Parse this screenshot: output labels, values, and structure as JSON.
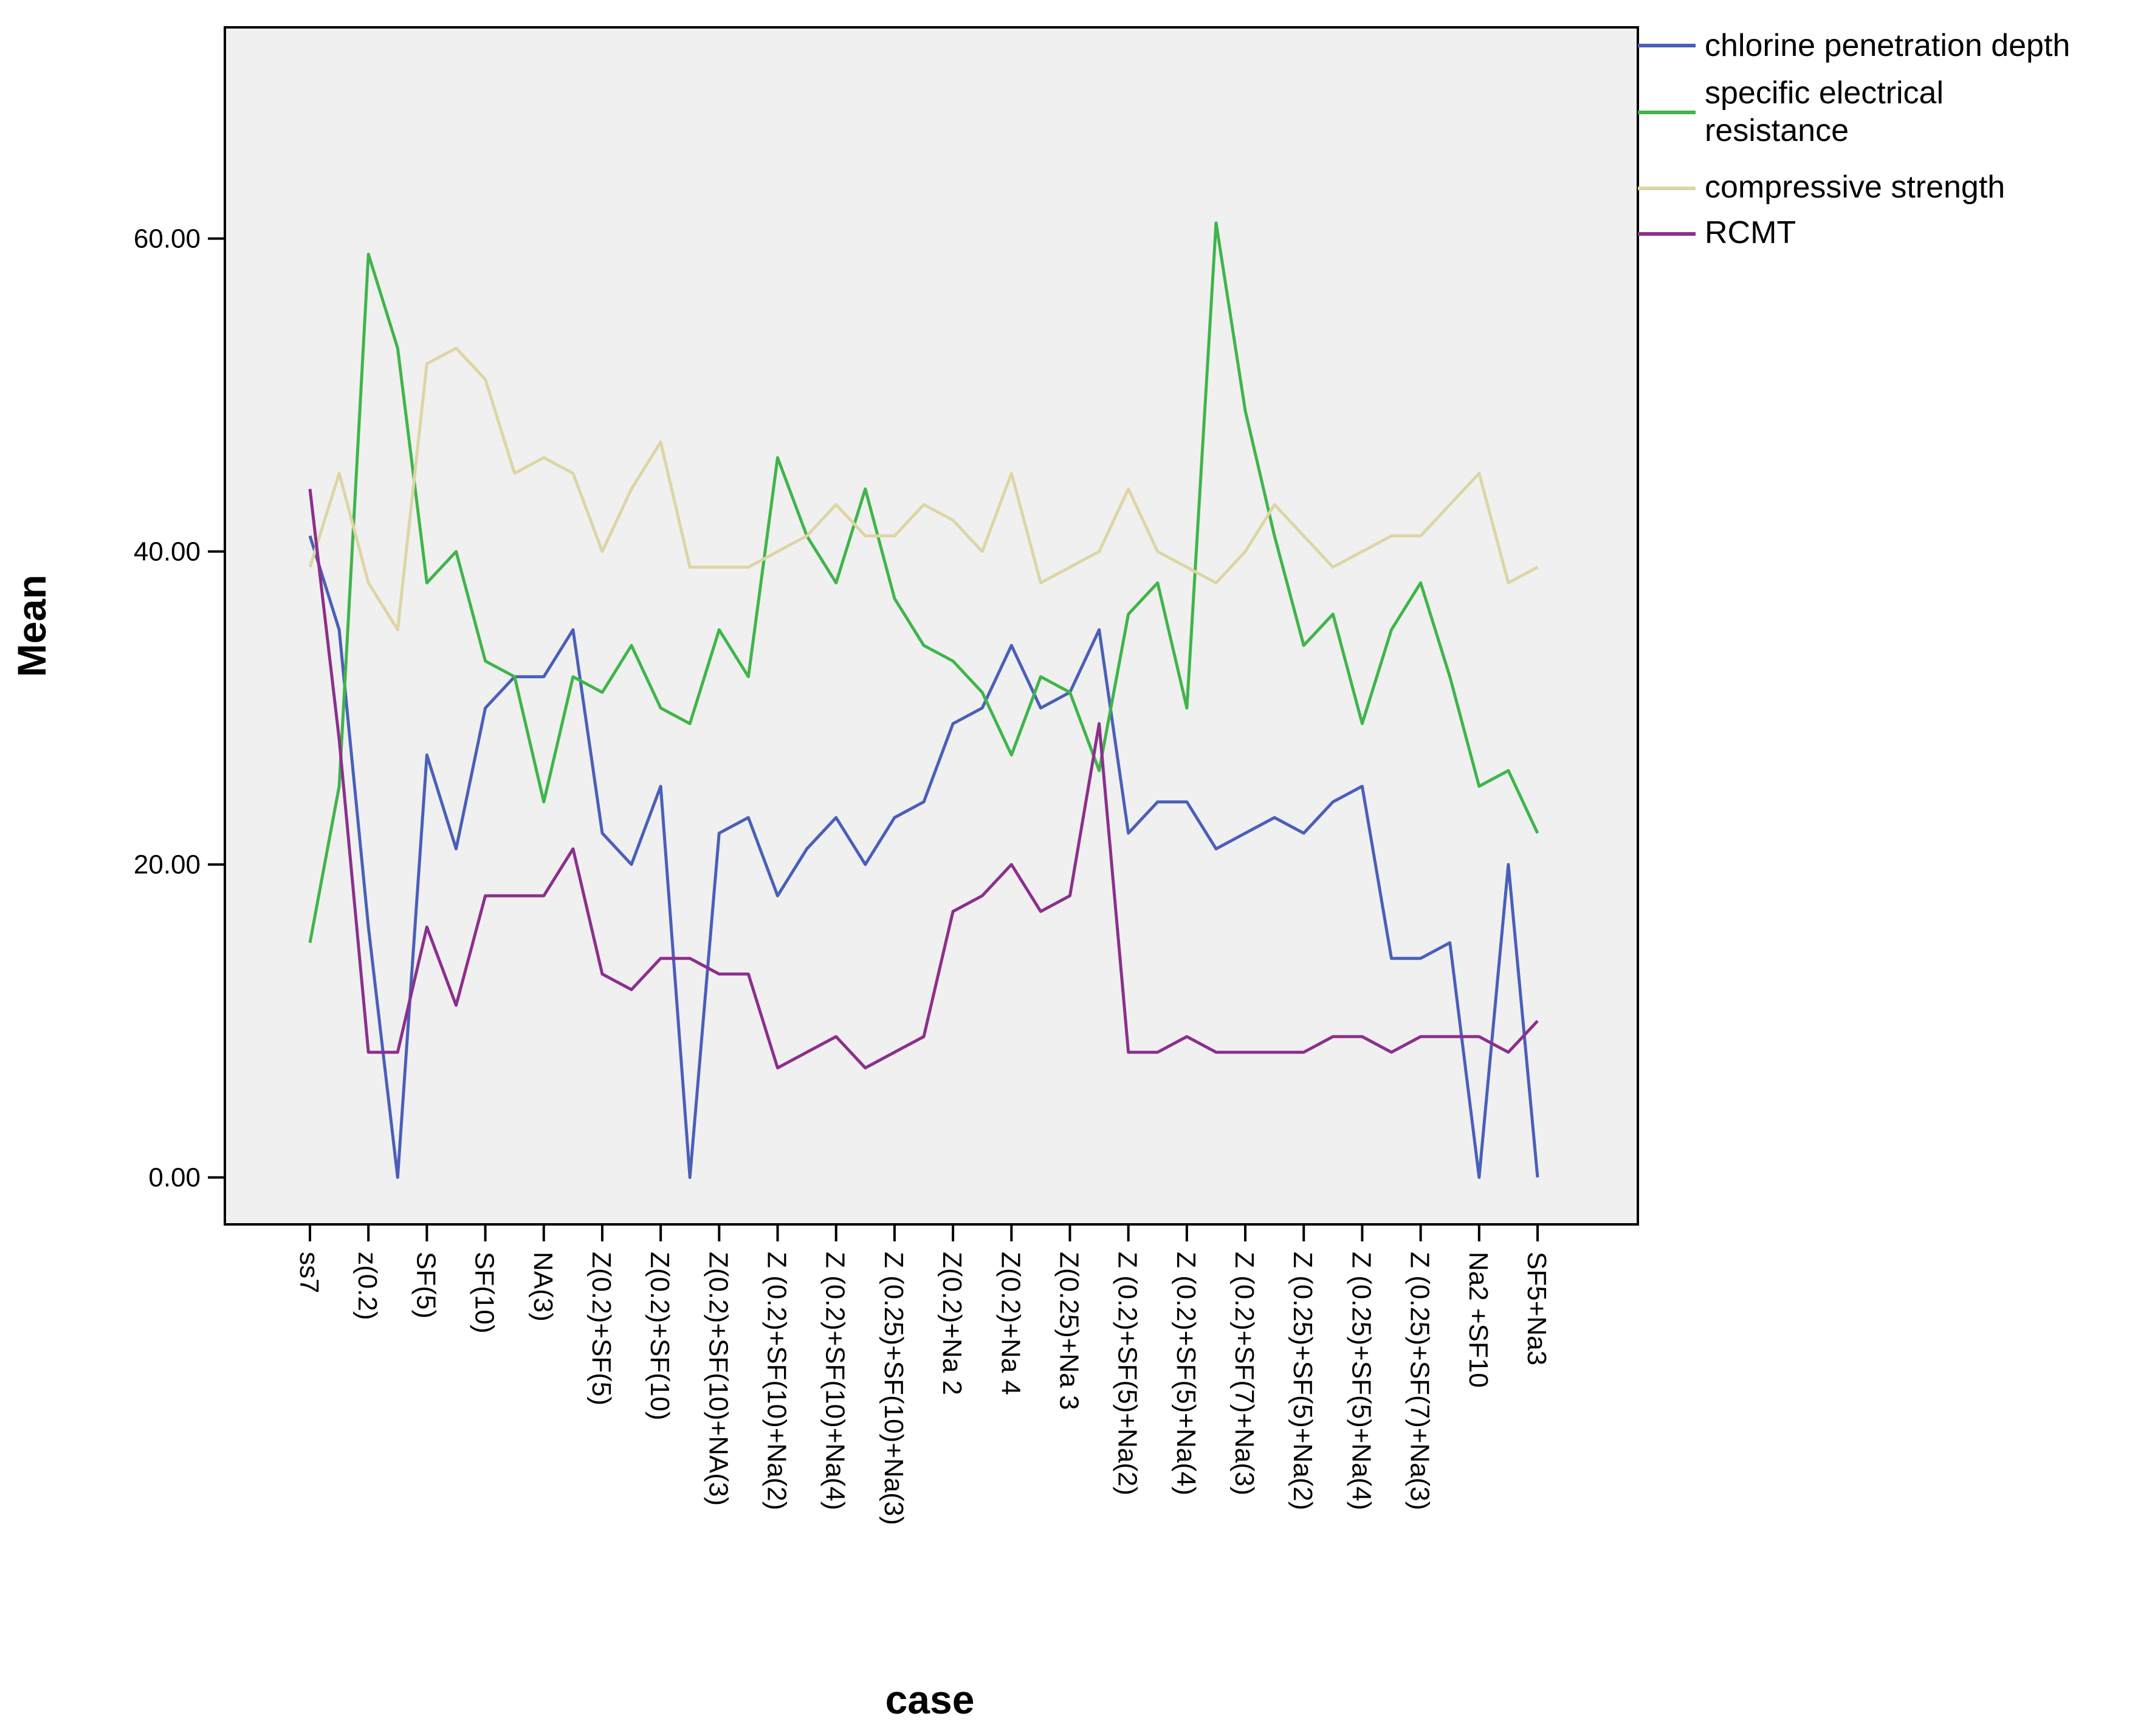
{
  "chart_data": {
    "type": "line",
    "xlabel": "case",
    "ylabel": "Mean",
    "ylim": [
      -3,
      73.5
    ],
    "yticks": [
      "0.00",
      "20.00",
      "40.00",
      "60.00"
    ],
    "ytick_values": [
      0,
      20,
      40,
      60
    ],
    "x": [
      1,
      2,
      3,
      4,
      5,
      6,
      7,
      8,
      9,
      10,
      11,
      12,
      13,
      14,
      15,
      16,
      17,
      18,
      19,
      20,
      21,
      22,
      23,
      24,
      25,
      26,
      27,
      28,
      29,
      30,
      31,
      32,
      33,
      34,
      35,
      36,
      37,
      38,
      39,
      40,
      41,
      42,
      43
    ],
    "x_tick_labels": [
      {
        "x": 1,
        "label": "ss7"
      },
      {
        "x": 3,
        "label": "z(0.2)"
      },
      {
        "x": 5,
        "label": "SF(5)"
      },
      {
        "x": 7,
        "label": "SF(10)"
      },
      {
        "x": 9,
        "label": "NA(3)"
      },
      {
        "x": 11,
        "label": "Z(0.2)+SF(5)"
      },
      {
        "x": 13,
        "label": "Z(0.2)+SF(10)"
      },
      {
        "x": 15,
        "label": "Z(0.2)+SF(10)+NA(3)"
      },
      {
        "x": 17,
        "label": "Z (0.2)+SF(10)+Na(2)"
      },
      {
        "x": 19,
        "label": "Z (0.2)+SF(10)+Na(4)"
      },
      {
        "x": 21,
        "label": "Z (0.25)+SF(10)+Na(3)"
      },
      {
        "x": 23,
        "label": "Z(0.2)+Na 2"
      },
      {
        "x": 25,
        "label": "Z(0.2)+Na 4"
      },
      {
        "x": 27,
        "label": "Z(0.25)+Na 3"
      },
      {
        "x": 29,
        "label": "Z (0.2)+SF(5)+Na(2)"
      },
      {
        "x": 31,
        "label": "Z (0.2)+SF(5)+Na(4)"
      },
      {
        "x": 33,
        "label": "Z (0.2)+SF(7)+Na(3)"
      },
      {
        "x": 35,
        "label": "Z (0.25)+SF(5)+Na(2)"
      },
      {
        "x": 37,
        "label": "Z (0.25)+SF(5)+Na(4)"
      },
      {
        "x": 39,
        "label": "Z (0.25)+SF(7)+Na(3)"
      },
      {
        "x": 41,
        "label": "Na2 +SF10"
      },
      {
        "x": 43,
        "label": "SF5+Na3"
      }
    ],
    "series": [
      {
        "name": "chlorine penetration depth",
        "color": "#4a5fb8",
        "values": [
          41,
          35,
          16,
          0,
          27,
          21,
          30,
          32,
          32,
          35,
          22,
          20,
          25,
          0,
          22,
          23,
          18,
          21,
          23,
          20,
          23,
          24,
          29,
          30,
          34,
          30,
          31,
          35,
          22,
          24,
          24,
          21,
          22,
          23,
          22,
          24,
          25,
          14,
          14,
          15,
          0,
          20,
          0
        ]
      },
      {
        "name": "specific electrical resistance",
        "color": "#3fb54a",
        "values": [
          15,
          25,
          59,
          53,
          38,
          40,
          33,
          32,
          24,
          32,
          31,
          34,
          30,
          29,
          35,
          32,
          46,
          41,
          38,
          44,
          37,
          34,
          33,
          31,
          27,
          32,
          31,
          26,
          36,
          38,
          30,
          61,
          49,
          41,
          34,
          36,
          29,
          35,
          38,
          32,
          25,
          26,
          22
        ]
      },
      {
        "name": "compressive strength",
        "color": "#ddd5a5",
        "values": [
          39,
          45,
          38,
          35,
          52,
          53,
          51,
          45,
          46,
          45,
          40,
          44,
          47,
          39,
          39,
          39,
          40,
          41,
          43,
          41,
          41,
          43,
          42,
          40,
          45,
          38,
          39,
          40,
          44,
          40,
          39,
          38,
          40,
          43,
          41,
          39,
          40,
          41,
          41,
          43,
          45,
          38,
          39
        ]
      },
      {
        "name": "RCMT",
        "color": "#8c2f8c",
        "values": [
          44,
          28,
          8,
          8,
          16,
          11,
          18,
          18,
          18,
          21,
          13,
          12,
          14,
          14,
          13,
          13,
          7,
          8,
          9,
          7,
          8,
          9,
          17,
          18,
          20,
          17,
          18,
          29,
          8,
          8,
          9,
          8,
          8,
          8,
          8,
          9,
          9,
          8,
          9,
          9,
          9,
          8,
          10
        ]
      }
    ],
    "legend": "top-right, outside plot area",
    "grid": false,
    "plot_background": "#f0f0f0"
  }
}
